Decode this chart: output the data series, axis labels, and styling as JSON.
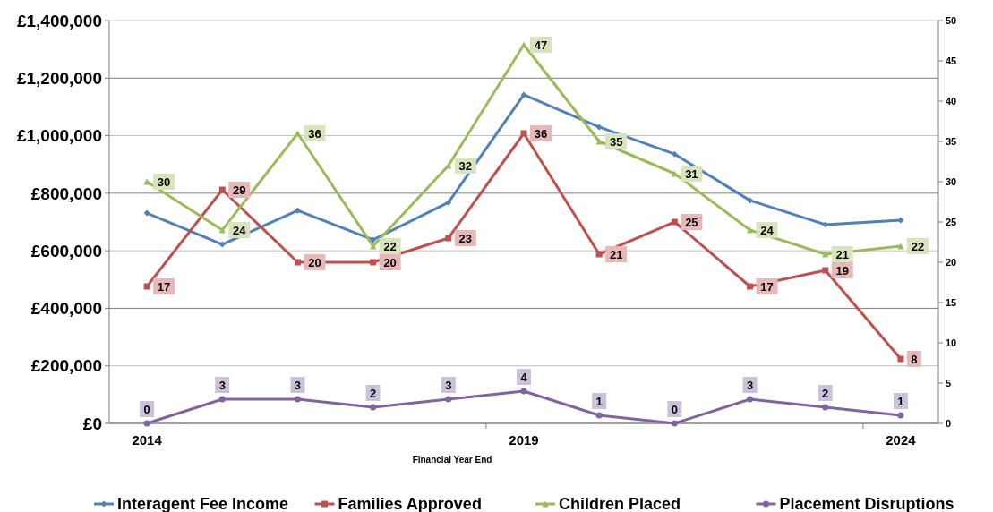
{
  "chart_data": {
    "type": "line",
    "xlabel": "Financial Year End",
    "categories": [
      "2014",
      null,
      null,
      null,
      null,
      "2019",
      null,
      null,
      null,
      null,
      "2024"
    ],
    "ylim": [
      0,
      1400000
    ],
    "yticks": [
      {
        "value": 0,
        "label": "£0"
      },
      {
        "value": 200000,
        "label": "£200,000"
      },
      {
        "value": 400000,
        "label": "£400,000"
      },
      {
        "value": 600000,
        "label": "£600,000"
      },
      {
        "value": 800000,
        "label": "£800,000"
      },
      {
        "value": 1000000,
        "label": "£1,000,000"
      },
      {
        "value": 1200000,
        "label": "£1,200,000"
      },
      {
        "value": 1400000,
        "label": "£1,400,000"
      }
    ],
    "y2lim": [
      0,
      50
    ],
    "y2ticks": [
      0,
      5,
      10,
      15,
      20,
      25,
      30,
      35,
      40,
      45,
      50
    ],
    "grid": "y",
    "legend": "bottom",
    "series": [
      {
        "name": "Interagent Fee Income",
        "color": "#4f81bd",
        "marker": "diamond",
        "values": [
          731000,
          622000,
          740000,
          638000,
          768000,
          1142000,
          1030000,
          936000,
          775000,
          691000,
          706000
        ]
      },
      {
        "name": "Families Approved",
        "color": "#c0504d",
        "marker": "square",
        "axis": "y2",
        "data_labels": true,
        "values": [
          17,
          29,
          20,
          20,
          23,
          36,
          21,
          25,
          17,
          19,
          8
        ]
      },
      {
        "name": "Children Placed",
        "color": "#9bbb59",
        "marker": "triangle",
        "axis": "y2",
        "data_labels": true,
        "values": [
          30,
          24,
          36,
          22,
          32,
          47,
          35,
          31,
          24,
          21,
          22
        ]
      },
      {
        "name": "Placement Disruptions",
        "color": "#8064a2",
        "marker": "circle",
        "axis": "y2",
        "data_labels": true,
        "values": [
          0,
          3,
          3,
          2,
          3,
          4,
          1,
          0,
          3,
          2,
          1
        ]
      }
    ]
  }
}
